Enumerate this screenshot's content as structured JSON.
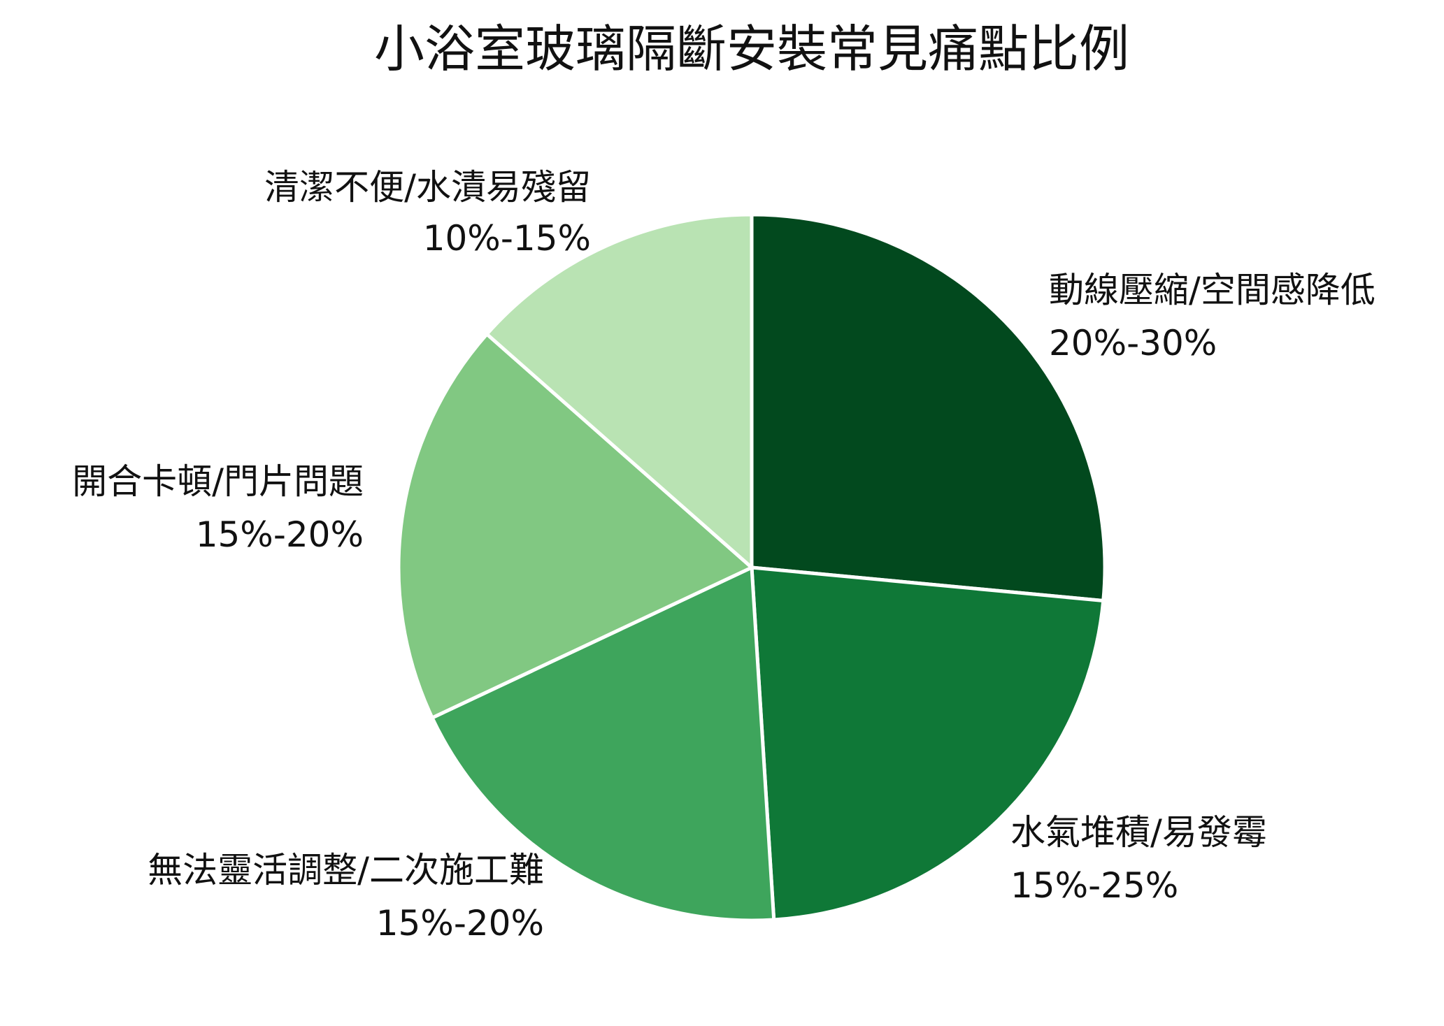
{
  "chart_data": {
    "type": "pie",
    "title": "小浴室玻璃隔斷安裝常見痛點比例",
    "start_angle_deg": 0,
    "direction": "clockwise",
    "slices": [
      {
        "label": "動線壓縮/空間感降低",
        "range_text": "20%-30%",
        "value": 26.5,
        "color": "#02491e"
      },
      {
        "label": "水氣堆積/易發霉",
        "range_text": "15%-25%",
        "value": 22.5,
        "color": "#0f7837"
      },
      {
        "label": "無法靈活調整/二次施工難",
        "range_text": "15%-20%",
        "value": 19.0,
        "color": "#3ea55c"
      },
      {
        "label": "開合卡頓/門片問題",
        "range_text": "15%-20%",
        "value": 18.5,
        "color": "#81c882"
      },
      {
        "label": "清潔不便/水漬易殘留",
        "range_text": "10%-15%",
        "value": 13.5,
        "color": "#b9e3b3"
      }
    ]
  }
}
